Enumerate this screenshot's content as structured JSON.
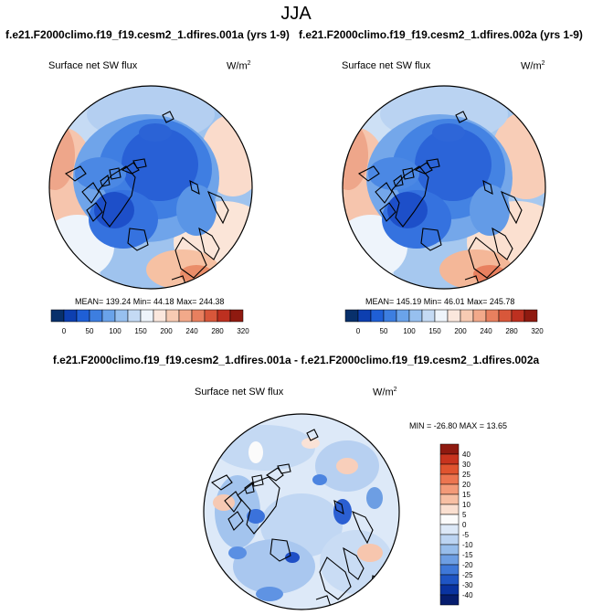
{
  "page": {
    "title": "JJA"
  },
  "panels": [
    {
      "case_title": "f.e21.F2000climo.f19_f19.cesm2_1.dfires.001a (yrs 1-9)",
      "variable": "Surface net SW flux",
      "units_base": "W/m",
      "units_exp": "2",
      "stats_text": "MEAN= 139.24  Min=  44.18  Max= 244.38"
    },
    {
      "case_title": "f.e21.F2000climo.f19_f19.cesm2_1.dfires.002a (yrs 1-9)",
      "variable": "Surface net SW flux",
      "units_base": "W/m",
      "units_exp": "2",
      "stats_text": "MEAN= 145.19  Min=  46.01  Max= 245.78"
    }
  ],
  "difference": {
    "title": "f.e21.F2000climo.f19_f19.cesm2_1.dfires.001a - f.e21.F2000climo.f19_f19.cesm2_1.dfires.002a",
    "variable": "Surface net SW flux",
    "units_base": "W/m",
    "units_exp": "2",
    "stats_text": "MIN = -26.80 MAX =  13.65"
  },
  "chart_data": [
    {
      "type": "heatmap",
      "projection": "north-polar-stereographic",
      "title": "f.e21.F2000climo.f19_f19.cesm2_1.dfires.001a (yrs 1-9)",
      "variable": "Surface net SW flux",
      "units": "W/m2",
      "mean": 139.24,
      "min": 44.18,
      "max": 244.38,
      "colorbar": {
        "orientation": "horizontal",
        "levels": [
          0,
          50,
          100,
          150,
          200,
          240,
          280,
          320
        ],
        "colors": [
          "#08306b",
          "#0d3fb0",
          "#1f5fd6",
          "#3d7ee0",
          "#6aa3ea",
          "#97c0ef",
          "#c4daf4",
          "#eef4fb",
          "#fbe7dd",
          "#f7cbb3",
          "#f2a98a",
          "#e8805f",
          "#d8573a",
          "#bd3020",
          "#8f1a10"
        ]
      }
    },
    {
      "type": "heatmap",
      "projection": "north-polar-stereographic",
      "title": "f.e21.F2000climo.f19_f19.cesm2_1.dfires.002a (yrs 1-9)",
      "variable": "Surface net SW flux",
      "units": "W/m2",
      "mean": 145.19,
      "min": 46.01,
      "max": 245.78,
      "colorbar": {
        "orientation": "horizontal",
        "levels": [
          0,
          50,
          100,
          150,
          200,
          240,
          280,
          320
        ],
        "colors": [
          "#08306b",
          "#0d3fb0",
          "#1f5fd6",
          "#3d7ee0",
          "#6aa3ea",
          "#97c0ef",
          "#c4daf4",
          "#eef4fb",
          "#fbe7dd",
          "#f7cbb3",
          "#f2a98a",
          "#e8805f",
          "#d8573a",
          "#bd3020",
          "#8f1a10"
        ]
      }
    },
    {
      "type": "heatmap",
      "projection": "north-polar-stereographic",
      "title": "f.e21.F2000climo.f19_f19.cesm2_1.dfires.001a - f.e21.F2000climo.f19_f19.cesm2_1.dfires.002a",
      "variable": "Surface net SW flux",
      "units": "W/m2",
      "min": -26.8,
      "max": 13.65,
      "colorbar": {
        "orientation": "vertical",
        "levels": [
          40,
          30,
          25,
          20,
          15,
          10,
          5,
          0,
          -5,
          -10,
          -15,
          -20,
          -25,
          -30,
          -40
        ],
        "colors": [
          "#8f1a10",
          "#c8341e",
          "#e0542f",
          "#ec7550",
          "#f39a78",
          "#f7bfa3",
          "#fadfd0",
          "#fbfbfb",
          "#dce8f7",
          "#bcd4f2",
          "#97bdeb",
          "#6d9ee3",
          "#3f78d8",
          "#1f55c4",
          "#0a33a0",
          "#061d6e"
        ]
      }
    }
  ]
}
